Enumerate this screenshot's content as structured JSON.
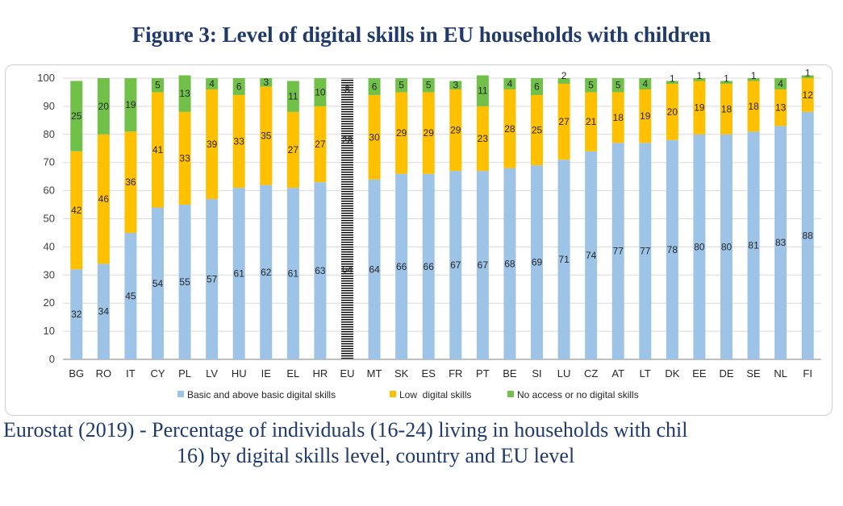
{
  "chart_data": {
    "type": "bar",
    "stacked": true,
    "title": "Figure 3: Level of digital skills in EU households with children",
    "categories": [
      "BG",
      "RO",
      "IT",
      "CY",
      "PL",
      "LV",
      "HU",
      "IE",
      "EL",
      "HR",
      "EU",
      "MT",
      "SK",
      "ES",
      "FR",
      "PT",
      "BE",
      "SI",
      "LU",
      "CZ",
      "AT",
      "LT",
      "DK",
      "EE",
      "DE",
      "SE",
      "NL",
      "FI"
    ],
    "series": [
      {
        "name": "Basic and above basic digital skills",
        "color": "#9dc3e6",
        "values": [
          32,
          34,
          45,
          54,
          55,
          57,
          61,
          62,
          61,
          63,
          64,
          64,
          66,
          66,
          67,
          67,
          68,
          69,
          71,
          74,
          77,
          77,
          78,
          80,
          80,
          81,
          83,
          88
        ]
      },
      {
        "name": "Low  digital skills",
        "color": "#ffc000",
        "values": [
          42,
          46,
          36,
          41,
          33,
          39,
          33,
          35,
          27,
          27,
          28,
          30,
          29,
          29,
          29,
          23,
          28,
          25,
          27,
          21,
          18,
          19,
          20,
          19,
          18,
          18,
          13,
          12
        ]
      },
      {
        "name": "No access or no digital skills",
        "color": "#70c04a",
        "values": [
          25,
          20,
          19,
          5,
          13,
          4,
          6,
          3,
          11,
          10,
          8,
          6,
          5,
          5,
          3,
          11,
          4,
          6,
          2,
          5,
          5,
          4,
          1,
          1,
          1,
          1,
          4,
          1
        ]
      }
    ],
    "highlight_category": "EU",
    "yticks": [
      0,
      10,
      20,
      30,
      40,
      50,
      60,
      70,
      80,
      90,
      100
    ],
    "ylim": [
      0,
      100
    ],
    "legend_position": "bottom"
  },
  "caption": {
    "line1": "Eurostat (2019) - Percentage of individuals (16-24) living in households with chil",
    "line2": "16) by digital skills level, country and EU level"
  }
}
